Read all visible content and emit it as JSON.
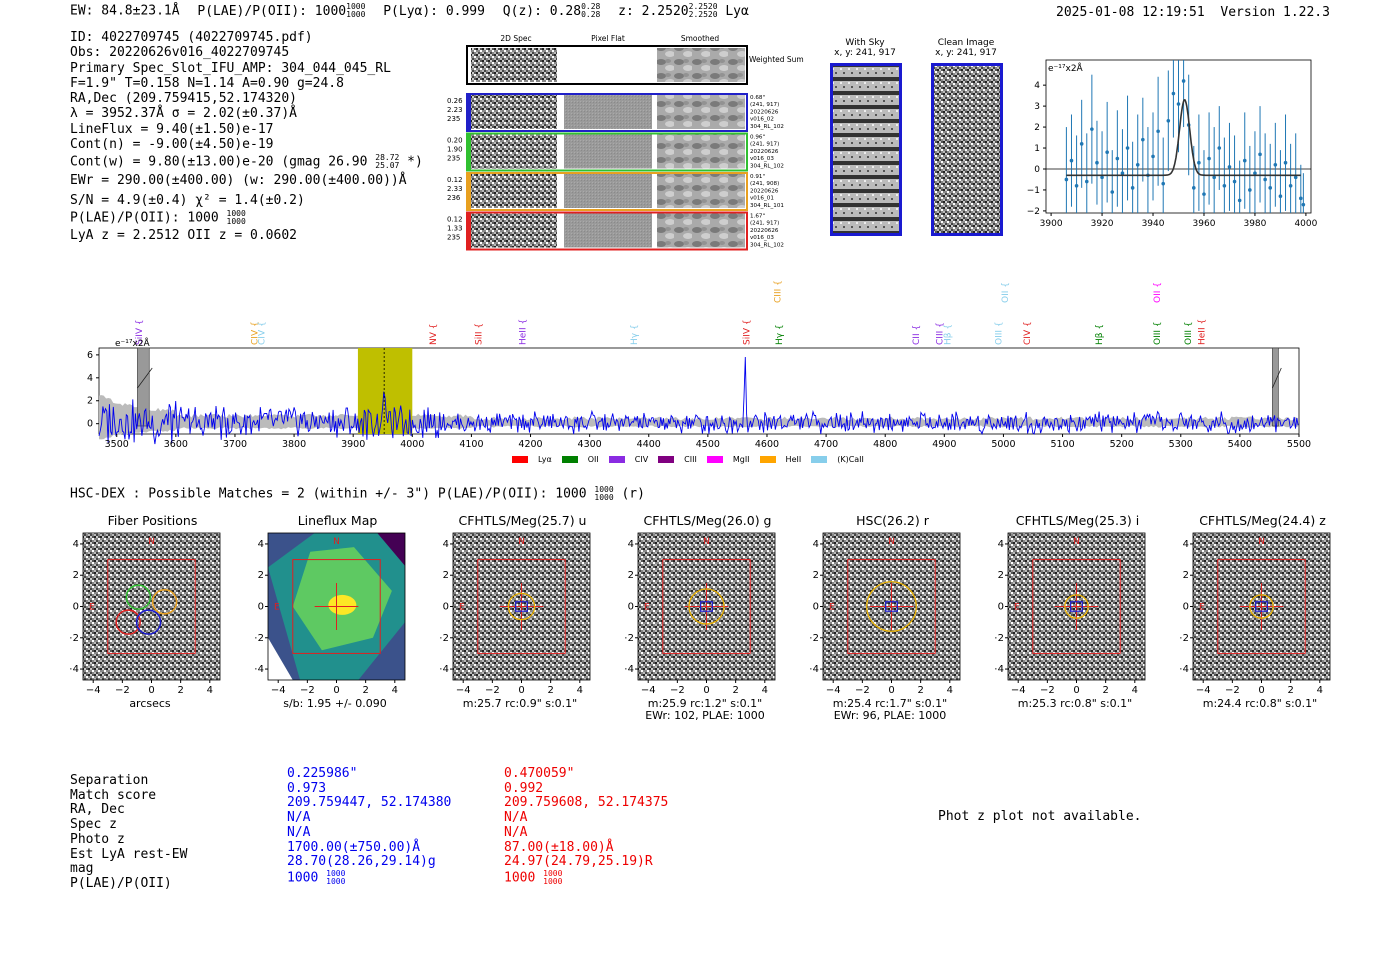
{
  "header": {
    "ew_text": "EW: 84.8±23.1Å",
    "plae_label": "P(LAE)/P(OII): 1000",
    "plae_hi": "1000",
    "plae_lo": "1000",
    "plya_text": "P(Lyα): 0.999",
    "qz_text": "Q(z): 0.28",
    "qz_hi": "0.28",
    "qz_lo": "0.28",
    "z_text": "z: 2.2520",
    "z_hi": "2.2520",
    "z_lo": "2.2520",
    "z_line": "Lyα",
    "timestamp": "2025-01-08 12:19:51",
    "version": "Version 1.22.3"
  },
  "info": {
    "lines": [
      "ID: 4022709745 (4022709745.pdf)",
      "Obs: 20220626v016_4022709745",
      "Primary Spec_Slot_IFU_AMP: 304_044_045_RL",
      "F=1.9\"  T=0.158  N=1.14  A=0.90  g=24.8",
      "RA,Dec (209.759415,52.174320)",
      "λ = 3952.37Å  σ = 2.02(±0.37)Å",
      "LineFlux = 9.40(±1.50)e-17",
      "Cont(n) = -9.00(±4.50)e-19"
    ],
    "contw_text": "Cont(w) = 9.80(±13.00)e-20 (gmag 26.90",
    "contw_hi": "28.72",
    "contw_lo": "25.07",
    "contw_end": "*)",
    "lines2": [
      "EWr = 290.00(±400.00) (w: 290.00(±400.00))Å",
      "S/N = 4.9(±0.4)  χ² = 1.4(±0.2)"
    ],
    "plae_text": "P(LAE)/P(OII): 1000",
    "plae_hi": "1000",
    "plae_lo": "1000",
    "lyaz_text": "LyA z = 2.2512  OII z = 0.0602"
  },
  "fiber_panel": {
    "col_titles": [
      "2D Spec",
      "Pixel Flat",
      "Smoothed"
    ],
    "weighted_label": "Weighted Sum",
    "rows": [
      {
        "color": "#2020c8",
        "left": [
          "0.26",
          "2.23",
          "235"
        ],
        "right": [
          "0.68\"",
          "(241, 917)",
          "20220626",
          "v016_02",
          "304_RL_102"
        ]
      },
      {
        "color": "#30c030",
        "left": [
          "0.20",
          "1.90",
          "235"
        ],
        "right": [
          "0.96\"",
          "(241, 917)",
          "20220626",
          "v016_03",
          "304_RL_102"
        ]
      },
      {
        "color": "#e8a020",
        "left": [
          "0.12",
          "2.33",
          "236"
        ],
        "right": [
          "0.91\"",
          "(241, 908)",
          "20220626",
          "v016_01",
          "304_RL_101"
        ]
      },
      {
        "color": "#e02020",
        "left": [
          "0.12",
          "1.33",
          "235"
        ],
        "right": [
          "1.67\"",
          "(241, 917)",
          "20220626",
          "v016_03",
          "304_RL_102"
        ]
      }
    ]
  },
  "sky": {
    "with_sky_title": "With Sky",
    "with_sky_coords": "x, y: 241, 917",
    "clean_title": "Clean Image",
    "clean_coords": "x, y: 241, 917"
  },
  "zoom_chart": {
    "unit_label": "e⁻¹⁷x2Å"
  },
  "wide_chart": {
    "unit_label": "e⁻¹⁷x2Å"
  },
  "chart_data": [
    {
      "type": "line",
      "name": "zoomed emission line",
      "ylabel": "e⁻¹⁷x2Å",
      "xlim": [
        3898,
        4002
      ],
      "ylim": [
        -2.1,
        5.2
      ],
      "xticks": [
        3900,
        3920,
        3940,
        3960,
        3980,
        4000
      ],
      "yticks": [
        -2,
        -1,
        0,
        1,
        2,
        3,
        4
      ],
      "grid": false,
      "points": {
        "x": [
          3906,
          3908,
          3910,
          3912,
          3914,
          3916,
          3918,
          3920,
          3922,
          3924,
          3926,
          3928,
          3930,
          3932,
          3934,
          3936,
          3938,
          3940,
          3942,
          3944,
          3946,
          3948,
          3950,
          3952,
          3954,
          3956,
          3958,
          3960,
          3962,
          3964,
          3966,
          3968,
          3970,
          3972,
          3974,
          3976,
          3978,
          3980,
          3982,
          3984,
          3986,
          3988,
          3990,
          3992,
          3994,
          3996,
          3998,
          3999
        ],
        "y": [
          -0.5,
          0.4,
          -0.8,
          1.2,
          -0.6,
          1.9,
          0.3,
          -0.4,
          0.8,
          -1.1,
          0.5,
          -0.2,
          1.0,
          -0.9,
          0.2,
          1.4,
          -0.3,
          0.6,
          1.8,
          -0.7,
          2.3,
          3.6,
          3.1,
          4.2,
          2.1,
          -0.9,
          0.3,
          -1.2,
          0.5,
          -0.4,
          1.0,
          -0.8,
          0.1,
          -0.6,
          -1.5,
          0.4,
          -1.0,
          -0.2,
          0.7,
          -0.5,
          -0.9,
          0.2,
          -1.3,
          0.3,
          -0.8,
          -0.4,
          -1.4,
          -1.7
        ],
        "err": [
          2.5,
          2.2,
          2.4,
          2.1,
          2.3,
          2.6,
          2.0,
          2.2,
          2.4,
          2.0,
          2.3,
          2.1,
          2.5,
          2.2,
          2.4,
          2.0,
          2.3,
          2.1,
          2.6,
          2.2,
          2.4,
          2.1,
          2.3,
          2.2,
          2.4,
          2.0,
          2.3,
          2.1,
          2.2,
          2.4,
          2.0,
          2.3,
          2.1,
          2.2,
          1.9,
          2.3,
          2.1,
          2.0,
          2.3,
          2.2,
          2.1,
          2.0,
          2.2,
          2.3,
          2.0,
          2.1,
          1.6,
          1.5
        ]
      },
      "model": {
        "amplitude": 3.6,
        "center": 3952.4,
        "sigma": 2.0,
        "baseline": -0.3,
        "x_range": [
          3906,
          3998
        ]
      },
      "colors": {
        "points": "#1f77b4",
        "model": "#333333",
        "zero_line": "#000000"
      }
    },
    {
      "type": "line",
      "name": "full spectrum",
      "ylabel": "e⁻¹⁷x2Å",
      "xlim": [
        3470,
        5500
      ],
      "ylim": [
        -0.9,
        6.6
      ],
      "xticks": [
        3500,
        3600,
        3700,
        3800,
        3900,
        4000,
        4100,
        4200,
        4300,
        4400,
        4500,
        4600,
        4700,
        4800,
        4900,
        5000,
        5100,
        5200,
        5300,
        5400,
        5500
      ],
      "yticks": [
        0,
        2,
        4,
        6
      ],
      "highlight_range": [
        3908,
        4000
      ],
      "highlight_color": "#bfbf00",
      "marker_x": 3952.4,
      "hatched_ranges": [
        [
          3535,
          3555
        ],
        [
          5455,
          5465
        ]
      ],
      "colors": {
        "flux": "#0000ee",
        "error_band": "#bbbbbb"
      },
      "emission_lines": [
        {
          "label": "SiIV",
          "x": 3538,
          "row": "low",
          "color": "#8a2be2"
        },
        {
          "label": "CIV",
          "x": 3733,
          "row": "low",
          "color": "#e8a020"
        },
        {
          "label": "CIV",
          "x": 3745,
          "row": "low",
          "color": "#87ceeb"
        },
        {
          "label": "NV",
          "x": 4035,
          "row": "low",
          "color": "#e02020"
        },
        {
          "label": "SiII",
          "x": 4112,
          "row": "low",
          "color": "#e02020"
        },
        {
          "label": "HeII",
          "x": 4186,
          "row": "low",
          "color": "#8a2be2"
        },
        {
          "label": "Hγ",
          "x": 4375,
          "row": "low",
          "color": "#87ceeb"
        },
        {
          "label": "SiIV",
          "x": 4565,
          "row": "low",
          "color": "#e02020"
        },
        {
          "label": "CIII",
          "x": 4618,
          "row": "high",
          "color": "#e8a020"
        },
        {
          "label": "Hγ",
          "x": 4620,
          "row": "low",
          "color": "#008000"
        },
        {
          "label": "CII",
          "x": 4852,
          "row": "low",
          "color": "#8a2be2"
        },
        {
          "label": "CIII",
          "x": 4892,
          "row": "low",
          "color": "#8a2be2"
        },
        {
          "label": "Hβ",
          "x": 4905,
          "row": "low",
          "color": "#87ceeb"
        },
        {
          "label": "OII",
          "x": 5003,
          "row": "high",
          "color": "#87ceeb"
        },
        {
          "label": "OIII",
          "x": 4992,
          "row": "low",
          "color": "#87ceeb"
        },
        {
          "label": "CIV",
          "x": 5040,
          "row": "low",
          "color": "#e02020"
        },
        {
          "label": "Hβ",
          "x": 5162,
          "row": "low",
          "color": "#008000"
        },
        {
          "label": "OII",
          "x": 5260,
          "row": "high",
          "color": "#ff00ff"
        },
        {
          "label": "OIII",
          "x": 5260,
          "row": "low",
          "color": "#008000"
        },
        {
          "label": "OIII",
          "x": 5312,
          "row": "low",
          "color": "#008000"
        },
        {
          "label": "HeII",
          "x": 5335,
          "row": "low",
          "color": "#e02020"
        }
      ],
      "legend": [
        {
          "label": "Lyα",
          "color": "#ff0000"
        },
        {
          "label": "OII",
          "color": "#008000"
        },
        {
          "label": "CIV",
          "color": "#8a2be2"
        },
        {
          "label": "CIII",
          "color": "#800080"
        },
        {
          "label": "MgII",
          "color": "#ff00ff"
        },
        {
          "label": "HeII",
          "color": "#ffa500"
        },
        {
          "label": "(K)CaII",
          "color": "#87ceeb"
        }
      ]
    }
  ],
  "hsc": {
    "title_text": "HSC-DEX : Possible Matches = 2 (within +/- 3\")  P(LAE)/P(OII): 1000",
    "title_hi": "1000",
    "title_lo": "1000",
    "title_end": "(r)"
  },
  "cutouts": {
    "ticks": [
      "−4",
      "−2",
      "0",
      "2",
      "4"
    ],
    "north": "N",
    "east": "E",
    "panels": [
      {
        "title": "Fiber Positions",
        "foot": [
          "arcsecs"
        ],
        "kind": "fiber"
      },
      {
        "title": "Lineflux Map",
        "foot": [
          "s/b: 1.95 +/- 0.090"
        ],
        "kind": "map"
      },
      {
        "title": "CFHTLS/Meg(25.7) u",
        "foot": [
          "m:25.7 rc:0.9\"  s:0.1\""
        ],
        "kind": "cut",
        "circle_r": 0.9
      },
      {
        "title": "CFHTLS/Meg(26.0) g",
        "foot": [
          "m:25.9 rc:1.2\"  s:0.1\"",
          "EWr: 102, PLAE: 1000"
        ],
        "kind": "cut",
        "circle_r": 1.2
      },
      {
        "title": "HSC(26.2) r",
        "foot": [
          "m:25.4 rc:1.7\"  s:0.1\"",
          "EWr: 96, PLAE: 1000"
        ],
        "kind": "cut",
        "circle_r": 1.7
      },
      {
        "title": "CFHTLS/Meg(25.3) i",
        "foot": [
          "m:25.3 rc:0.8\"  s:0.1\""
        ],
        "kind": "cut",
        "circle_r": 0.8
      },
      {
        "title": "CFHTLS/Meg(24.4) z",
        "foot": [
          "m:24.4 rc:0.8\"  s:0.1\""
        ],
        "kind": "cut",
        "circle_r": 0.8
      }
    ]
  },
  "match_table": {
    "labels": [
      "Separation",
      "Match score",
      "RA, Dec",
      "Spec z",
      "Photo z",
      "Est LyA rest-EW",
      "mag",
      "P(LAE)/P(OII)"
    ],
    "col1": [
      "0.225986\"",
      "0.973",
      "209.759447, 52.174380",
      "N/A",
      "N/A",
      "1700.00(±750.00)Å",
      "28.70(28.26,29.14)g",
      "1000"
    ],
    "col1_frac": [
      "1000",
      "1000"
    ],
    "col2": [
      "0.470059\"",
      "0.992",
      "209.759608, 52.174375",
      "N/A",
      "N/A",
      "87.00(±18.00)Å",
      "24.97(24.79,25.19)R",
      "1000"
    ],
    "col2_frac": [
      "1000",
      "1000"
    ],
    "col1_color": "#0000ee",
    "col2_color": "#ee0000"
  },
  "photz_note": "Phot z plot not available."
}
